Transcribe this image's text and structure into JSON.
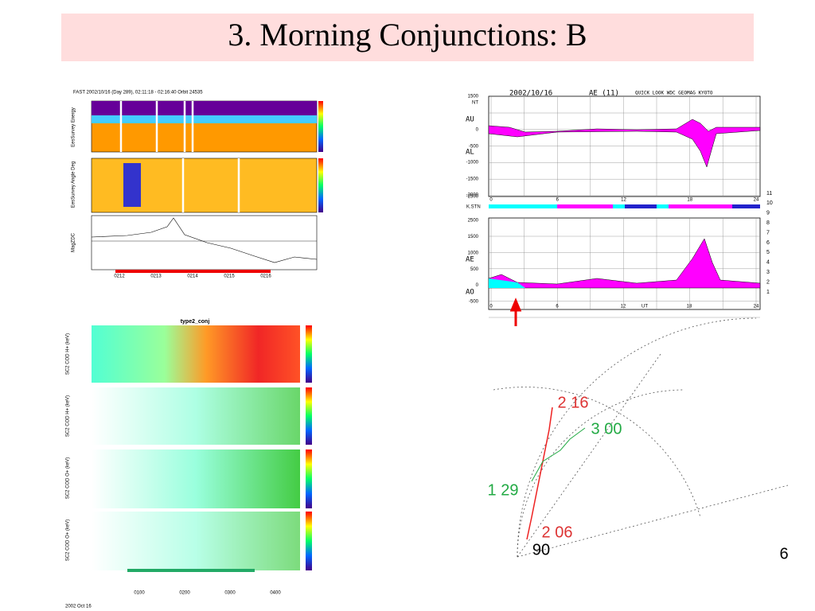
{
  "title": "3. Morning Conjunctions: B",
  "page_number": "6",
  "fast_panel": {
    "header": "FAST    2002/10/16 (Day 289),  02:11:18 - 02:16:40   Orbit 24535",
    "ylabels": [
      "EesSurvey Energy",
      "EesSurvey Angle Deg",
      "MagZDC"
    ],
    "xticks": [
      "0212",
      "0213",
      "0214",
      "0215",
      "0216"
    ]
  },
  "ae_panel": {
    "date": "2002/10/16",
    "index": "AE (11)",
    "source": "QUICK LOOK  WDC GEOMAG KYOTO",
    "top_yticks": [
      "1500",
      "NT",
      "0",
      "-500",
      "-1000",
      "-1500",
      "-2000",
      "-2500"
    ],
    "top_labels": [
      "AU",
      "AL"
    ],
    "bottom_yticks": [
      "2500",
      "1500",
      "1000",
      "500",
      "0",
      "-500"
    ],
    "bottom_labels": [
      "AE",
      "AO"
    ],
    "top_xticks": [
      "0",
      "6",
      "12",
      "18",
      "24"
    ],
    "bottom_xticks": [
      "0",
      "6",
      "12",
      "UT",
      "18",
      "24"
    ],
    "station_label": "K.STN",
    "stations": [
      "11",
      "10",
      "9",
      "8",
      "7",
      "6",
      "5",
      "4",
      "3",
      "2",
      "1"
    ]
  },
  "spectrogram": {
    "title": "type2_conj",
    "panels": [
      "SC2 COD H+ (keV)",
      "SC2 COD H+ (keV)",
      "SC2 COD O+ (keV)",
      "SC2 COD O+ (keV)"
    ],
    "footer": [
      "2002 Oct 16",
      "0100",
      "0200",
      "0300",
      "0400"
    ]
  },
  "polar": {
    "labels": [
      "2 16",
      "3 00",
      "1 29",
      "2 06",
      "90"
    ]
  }
}
